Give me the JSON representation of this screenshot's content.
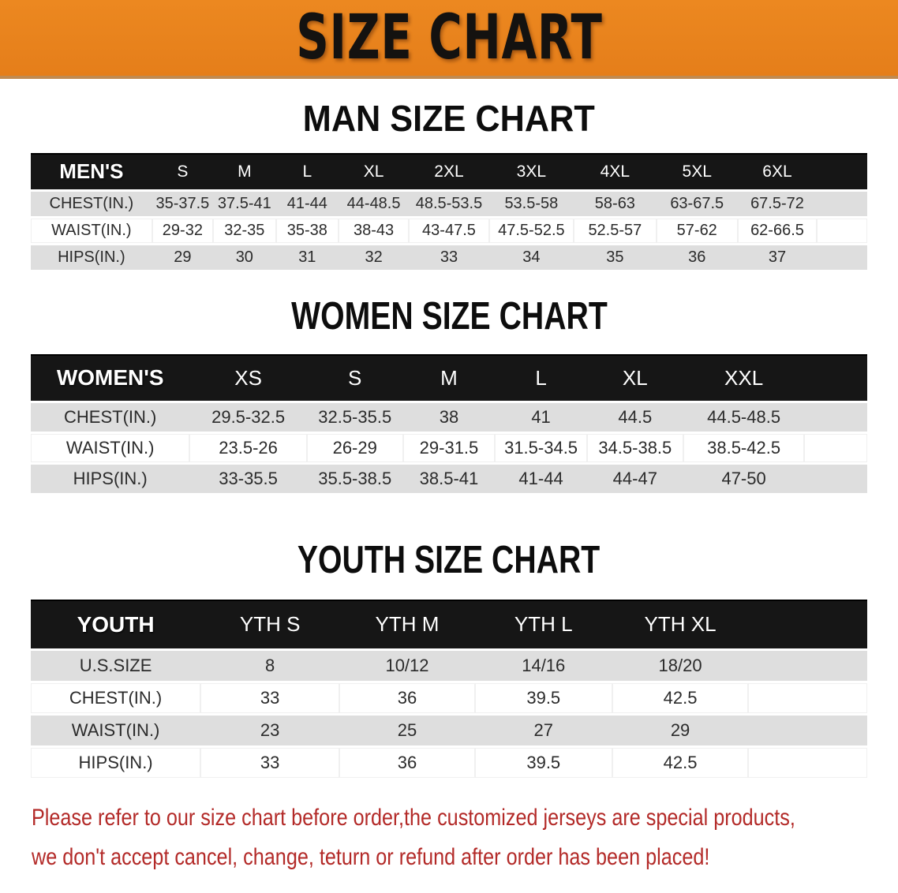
{
  "banner": {
    "title": "SIZE CHART"
  },
  "theme": {
    "banner_orange": "#e8821e",
    "header_black": "#161616",
    "row_gray": "#dedede",
    "notice_red": "#b32a28"
  },
  "sections": [
    {
      "heading": "MAN SIZE CHART",
      "label_header": "MEN'S",
      "columns": [
        "S",
        "M",
        "L",
        "XL",
        "2XL",
        "3XL",
        "4XL",
        "5XL",
        "6XL"
      ],
      "rows": [
        {
          "label": "CHEST(IN.)",
          "values": [
            "35-37.5",
            "37.5-41",
            "41-44",
            "44-48.5",
            "48.5-53.5",
            "53.5-58",
            "58-63",
            "63-67.5",
            "67.5-72"
          ]
        },
        {
          "label": "WAIST(IN.)",
          "values": [
            "29-32",
            "32-35",
            "35-38",
            "38-43",
            "43-47.5",
            "47.5-52.5",
            "52.5-57",
            "57-62",
            "62-66.5"
          ]
        },
        {
          "label": "HIPS(IN.)",
          "values": [
            "29",
            "30",
            "31",
            "32",
            "33",
            "34",
            "35",
            "36",
            "37"
          ]
        }
      ]
    },
    {
      "heading": "WOMEN SIZE CHART",
      "label_header": "WOMEN'S",
      "columns": [
        "XS",
        "S",
        "M",
        "L",
        "XL",
        "XXL"
      ],
      "rows": [
        {
          "label": "CHEST(IN.)",
          "values": [
            "29.5-32.5",
            "32.5-35.5",
            "38",
            "41",
            "44.5",
            "44.5-48.5"
          ]
        },
        {
          "label": "WAIST(IN.)",
          "values": [
            "23.5-26",
            "26-29",
            "29-31.5",
            "31.5-34.5",
            "34.5-38.5",
            "38.5-42.5"
          ]
        },
        {
          "label": "HIPS(IN.)",
          "values": [
            "33-35.5",
            "35.5-38.5",
            "38.5-41",
            "41-44",
            "44-47",
            "47-50"
          ]
        }
      ]
    },
    {
      "heading": "YOUTH SIZE CHART",
      "label_header": "YOUTH",
      "columns": [
        "YTH S",
        "YTH M",
        "YTH L",
        "YTH XL"
      ],
      "rows": [
        {
          "label": "U.S.SIZE",
          "values": [
            "8",
            "10/12",
            "14/16",
            "18/20"
          ]
        },
        {
          "label": "CHEST(IN.)",
          "values": [
            "33",
            "36",
            "39.5",
            "42.5"
          ]
        },
        {
          "label": "WAIST(IN.)",
          "values": [
            "23",
            "25",
            "27",
            "29"
          ]
        },
        {
          "label": "HIPS(IN.)",
          "values": [
            "33",
            "36",
            "39.5",
            "42.5"
          ]
        }
      ]
    }
  ],
  "footer": {
    "line1": "Please refer to our size chart before order,the customized jerseys are special products,",
    "line2": "we don't accept cancel, change, teturn or refund after order has been placed!"
  }
}
